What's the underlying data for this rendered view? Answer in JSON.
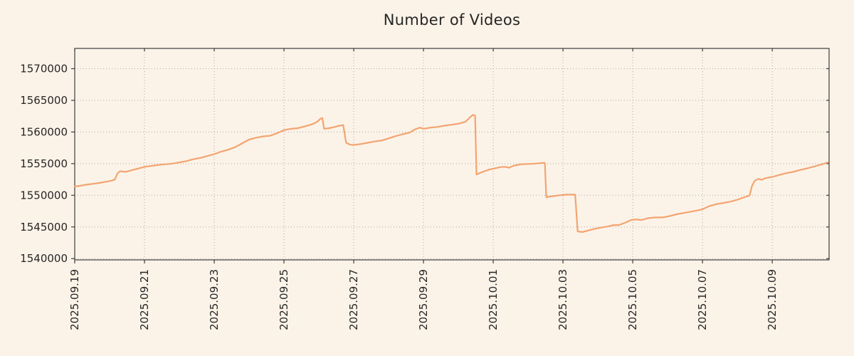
{
  "chart_data": {
    "type": "line",
    "title": "Number of Videos",
    "xlabel": "",
    "ylabel": "",
    "legend": null,
    "grid": "dotted",
    "x_tick_labels": [
      "2025.09.19",
      "2025.09.21",
      "2025.09.23",
      "2025.09.25",
      "2025.09.27",
      "2025.09.29",
      "2025.10.01",
      "2025.10.03",
      "2025.10.05",
      "2025.10.07",
      "2025.10.09"
    ],
    "x_tick_days": [
      0,
      2,
      4,
      6,
      8,
      10,
      12,
      14,
      16,
      18,
      20
    ],
    "y_ticks": [
      1540000,
      1545000,
      1550000,
      1555000,
      1560000,
      1565000,
      1570000
    ],
    "xlim_days": [
      0,
      21.63
    ],
    "ylim": [
      1539800,
      1573200
    ],
    "colors": {
      "background": "#fcf3e8",
      "line": "#f3a470",
      "grid": "#a8a8a8",
      "axis": "#3c3c3c",
      "text": "#262626"
    },
    "series_name": "Number of Videos",
    "points": [
      [
        0.0,
        1551400
      ],
      [
        0.15,
        1551500
      ],
      [
        0.3,
        1551650
      ],
      [
        0.5,
        1551800
      ],
      [
        0.7,
        1551950
      ],
      [
        0.9,
        1552150
      ],
      [
        1.05,
        1552300
      ],
      [
        1.15,
        1552500
      ],
      [
        1.22,
        1553400
      ],
      [
        1.3,
        1553800
      ],
      [
        1.45,
        1553700
      ],
      [
        1.6,
        1553900
      ],
      [
        1.8,
        1554200
      ],
      [
        2.0,
        1554500
      ],
      [
        2.2,
        1554650
      ],
      [
        2.4,
        1554800
      ],
      [
        2.6,
        1554900
      ],
      [
        2.8,
        1555000
      ],
      [
        3.0,
        1555200
      ],
      [
        3.2,
        1555400
      ],
      [
        3.4,
        1555700
      ],
      [
        3.6,
        1555900
      ],
      [
        3.8,
        1556200
      ],
      [
        4.0,
        1556500
      ],
      [
        4.2,
        1556900
      ],
      [
        4.4,
        1557200
      ],
      [
        4.6,
        1557600
      ],
      [
        4.8,
        1558200
      ],
      [
        5.0,
        1558800
      ],
      [
        5.2,
        1559100
      ],
      [
        5.4,
        1559300
      ],
      [
        5.6,
        1559400
      ],
      [
        5.8,
        1559800
      ],
      [
        6.0,
        1560300
      ],
      [
        6.2,
        1560500
      ],
      [
        6.4,
        1560600
      ],
      [
        6.6,
        1560900
      ],
      [
        6.8,
        1561200
      ],
      [
        6.95,
        1561600
      ],
      [
        7.05,
        1562100
      ],
      [
        7.1,
        1562200
      ],
      [
        7.15,
        1560500
      ],
      [
        7.3,
        1560600
      ],
      [
        7.45,
        1560800
      ],
      [
        7.6,
        1561000
      ],
      [
        7.7,
        1561100
      ],
      [
        7.78,
        1558300
      ],
      [
        7.9,
        1558000
      ],
      [
        8.0,
        1557950
      ],
      [
        8.2,
        1558100
      ],
      [
        8.4,
        1558300
      ],
      [
        8.6,
        1558500
      ],
      [
        8.8,
        1558650
      ],
      [
        9.0,
        1559000
      ],
      [
        9.2,
        1559350
      ],
      [
        9.4,
        1559650
      ],
      [
        9.6,
        1559900
      ],
      [
        9.75,
        1560400
      ],
      [
        9.9,
        1560700
      ],
      [
        10.0,
        1560500
      ],
      [
        10.2,
        1560700
      ],
      [
        10.4,
        1560800
      ],
      [
        10.6,
        1561000
      ],
      [
        10.8,
        1561150
      ],
      [
        11.0,
        1561300
      ],
      [
        11.2,
        1561600
      ],
      [
        11.35,
        1562400
      ],
      [
        11.42,
        1562700
      ],
      [
        11.48,
        1562600
      ],
      [
        11.52,
        1553300
      ],
      [
        11.7,
        1553700
      ],
      [
        11.9,
        1554100
      ],
      [
        12.0,
        1554200
      ],
      [
        12.2,
        1554450
      ],
      [
        12.35,
        1554500
      ],
      [
        12.45,
        1554350
      ],
      [
        12.6,
        1554700
      ],
      [
        12.8,
        1554900
      ],
      [
        13.0,
        1554950
      ],
      [
        13.2,
        1555000
      ],
      [
        13.4,
        1555100
      ],
      [
        13.48,
        1555100
      ],
      [
        13.52,
        1549700
      ],
      [
        13.7,
        1549850
      ],
      [
        13.9,
        1550000
      ],
      [
        14.1,
        1550100
      ],
      [
        14.35,
        1550100
      ],
      [
        14.42,
        1544300
      ],
      [
        14.55,
        1544200
      ],
      [
        14.7,
        1544400
      ],
      [
        14.9,
        1544700
      ],
      [
        15.1,
        1544900
      ],
      [
        15.3,
        1545100
      ],
      [
        15.45,
        1545300
      ],
      [
        15.6,
        1545300
      ],
      [
        15.8,
        1545700
      ],
      [
        15.95,
        1546100
      ],
      [
        16.1,
        1546200
      ],
      [
        16.25,
        1546100
      ],
      [
        16.45,
        1546400
      ],
      [
        16.65,
        1546500
      ],
      [
        16.85,
        1546500
      ],
      [
        17.05,
        1546700
      ],
      [
        17.25,
        1547000
      ],
      [
        17.45,
        1547200
      ],
      [
        17.65,
        1547400
      ],
      [
        17.85,
        1547600
      ],
      [
        18.0,
        1547800
      ],
      [
        18.2,
        1548300
      ],
      [
        18.4,
        1548600
      ],
      [
        18.6,
        1548800
      ],
      [
        18.8,
        1549000
      ],
      [
        19.0,
        1549300
      ],
      [
        19.2,
        1549700
      ],
      [
        19.35,
        1549950
      ],
      [
        19.42,
        1551500
      ],
      [
        19.5,
        1552300
      ],
      [
        19.6,
        1552600
      ],
      [
        19.7,
        1552450
      ],
      [
        19.8,
        1552700
      ],
      [
        20.0,
        1552900
      ],
      [
        20.2,
        1553200
      ],
      [
        20.4,
        1553500
      ],
      [
        20.6,
        1553700
      ],
      [
        20.8,
        1554000
      ],
      [
        21.0,
        1554250
      ],
      [
        21.2,
        1554550
      ],
      [
        21.4,
        1554850
      ],
      [
        21.6,
        1555200
      ]
    ]
  }
}
